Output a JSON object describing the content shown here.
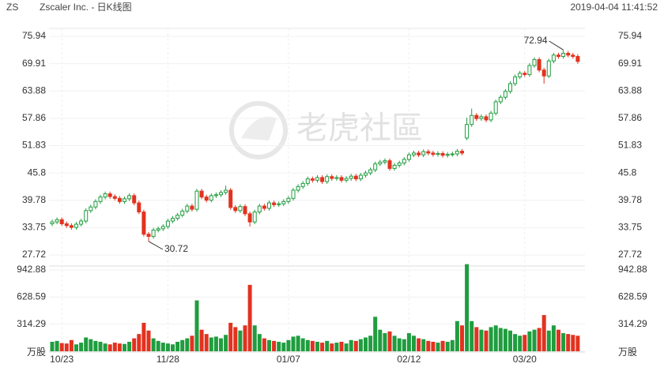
{
  "header": {
    "symbol": "ZS",
    "name": "Zscaler Inc. - 日K线图",
    "time": "2019-04-04 11:41:52"
  },
  "watermark": "老虎社區",
  "chart_data": {
    "type": "candlestick",
    "up_color": "#1f9d3f",
    "down_color": "#e2321f",
    "grid": true,
    "categories": [
      null,
      null,
      "10/23",
      null,
      null,
      null,
      null,
      null,
      null,
      null,
      null,
      null,
      null,
      null,
      null,
      null,
      null,
      null,
      null,
      null,
      null,
      null,
      null,
      null,
      "11/28",
      null,
      null,
      null,
      null,
      null,
      null,
      null,
      null,
      null,
      null,
      null,
      null,
      null,
      null,
      null,
      null,
      null,
      null,
      null,
      null,
      null,
      null,
      null,
      null,
      "01/07",
      null,
      null,
      null,
      null,
      null,
      null,
      null,
      null,
      null,
      null,
      null,
      null,
      null,
      null,
      null,
      null,
      null,
      null,
      null,
      null,
      null,
      null,
      null,
      null,
      "02/12",
      null,
      null,
      null,
      null,
      null,
      null,
      null,
      null,
      null,
      null,
      null,
      null,
      null,
      null,
      null,
      null,
      null,
      null,
      null,
      null,
      null,
      null,
      null,
      "03/20",
      null,
      null,
      null,
      null,
      null,
      null,
      null,
      null,
      null,
      null,
      null
    ],
    "open": [
      34.6,
      35.0,
      35.5,
      34.6,
      34.2,
      33.8,
      34.5,
      35.2,
      37.5,
      38.3,
      39.5,
      40.5,
      41.2,
      40.6,
      40.2,
      39.5,
      40.1,
      40.8,
      39.2,
      37.2,
      32.3,
      31.8,
      33.2,
      33.5,
      34.0,
      35.2,
      35.8,
      36.5,
      37.4,
      38.5,
      37.8,
      41.8,
      40.5,
      39.8,
      40.8,
      41.0,
      41.5,
      42.0,
      38.2,
      37.5,
      38.4,
      36.8,
      35.0,
      37.2,
      38.5,
      38.0,
      39.2,
      38.8,
      39.0,
      39.5,
      40.2,
      42.0,
      42.8,
      43.5,
      44.5,
      44.2,
      44.8,
      43.9,
      45.0,
      44.6,
      44.8,
      44.2,
      44.6,
      45.1,
      44.5,
      45.3,
      45.8,
      46.5,
      47.8,
      48.2,
      48.5,
      46.8,
      47.5,
      48.0,
      48.8,
      49.8,
      50.2,
      49.8,
      50.5,
      50.2,
      49.9,
      50.1,
      49.7,
      49.9,
      50.0,
      50.6,
      53.5,
      56.5,
      58.5,
      57.8,
      58.2,
      57.5,
      59.0,
      61.5,
      62.5,
      63.8,
      65.5,
      67.0,
      67.8,
      67.5,
      69.5,
      70.8,
      68.5,
      67.2,
      70.5,
      71.8,
      71.5,
      72.2,
      71.8,
      71.5
    ],
    "high": [
      35.5,
      36.0,
      36.0,
      35.1,
      34.7,
      35.0,
      35.7,
      38.0,
      38.8,
      40.0,
      41.0,
      41.7,
      41.7,
      41.1,
      40.7,
      40.6,
      41.3,
      41.3,
      39.7,
      37.7,
      32.8,
      33.7,
      34.0,
      34.5,
      35.7,
      36.3,
      37.0,
      37.9,
      39.0,
      39.0,
      42.3,
      42.3,
      41.0,
      41.3,
      41.5,
      42.0,
      43.0,
      42.5,
      38.7,
      38.9,
      38.9,
      37.3,
      37.7,
      39.0,
      39.0,
      39.7,
      39.7,
      39.5,
      40.0,
      40.7,
      42.5,
      43.3,
      44.0,
      45.0,
      45.0,
      45.3,
      45.3,
      45.5,
      45.5,
      45.3,
      45.3,
      45.1,
      45.6,
      45.6,
      45.8,
      46.3,
      47.0,
      48.3,
      48.7,
      49.0,
      49.0,
      48.0,
      48.5,
      49.3,
      50.3,
      50.7,
      50.7,
      51.0,
      51.0,
      50.7,
      50.6,
      50.6,
      50.4,
      50.5,
      51.1,
      51.1,
      58.0,
      60.0,
      59.0,
      58.7,
      58.7,
      59.5,
      62.0,
      63.0,
      64.3,
      66.0,
      67.5,
      68.3,
      68.3,
      70.0,
      71.3,
      71.3,
      69.0,
      71.0,
      72.3,
      72.3,
      72.94,
      72.7,
      72.3,
      72.0
    ],
    "low": [
      34.1,
      34.5,
      34.1,
      33.7,
      33.3,
      33.3,
      34.0,
      34.7,
      37.0,
      37.8,
      39.0,
      40.0,
      40.1,
      39.7,
      39.0,
      39.0,
      39.6,
      38.7,
      36.7,
      31.8,
      30.72,
      31.3,
      32.7,
      33.0,
      33.5,
      34.7,
      35.3,
      36.0,
      36.9,
      37.3,
      37.3,
      40.0,
      39.3,
      39.3,
      40.3,
      40.5,
      41.0,
      37.7,
      37.0,
      37.0,
      36.3,
      34.0,
      34.5,
      36.7,
      37.5,
      37.5,
      38.3,
      38.3,
      38.5,
      39.0,
      39.7,
      41.5,
      42.3,
      43.0,
      43.7,
      43.7,
      43.4,
      43.4,
      44.1,
      44.1,
      43.7,
      43.7,
      44.1,
      44.0,
      44.0,
      44.8,
      45.3,
      46.0,
      47.3,
      47.7,
      46.3,
      46.3,
      47.0,
      47.5,
      48.3,
      49.3,
      49.3,
      49.3,
      49.7,
      49.4,
      49.4,
      49.2,
      49.2,
      49.4,
      49.5,
      49.7,
      53.0,
      56.0,
      57.3,
      57.3,
      57.0,
      57.0,
      58.5,
      61.0,
      62.0,
      63.3,
      65.0,
      66.5,
      67.0,
      67.0,
      69.0,
      68.0,
      65.5,
      66.7,
      70.0,
      71.0,
      71.0,
      71.3,
      71.0,
      69.9
    ],
    "close": [
      35.0,
      35.5,
      34.6,
      34.2,
      33.8,
      34.5,
      35.2,
      37.5,
      38.3,
      39.5,
      40.5,
      41.2,
      40.6,
      40.2,
      39.5,
      40.1,
      40.8,
      39.2,
      37.2,
      32.3,
      31.8,
      33.2,
      33.5,
      34.0,
      35.2,
      35.8,
      36.5,
      37.4,
      38.5,
      37.8,
      41.8,
      40.5,
      39.8,
      40.8,
      41.0,
      41.5,
      42.0,
      38.2,
      37.5,
      38.4,
      36.8,
      35.0,
      37.2,
      38.5,
      38.0,
      39.2,
      38.8,
      39.0,
      39.5,
      40.2,
      42.0,
      42.8,
      43.5,
      44.5,
      44.2,
      44.8,
      43.9,
      45.0,
      44.6,
      44.8,
      44.2,
      44.6,
      45.1,
      44.5,
      45.3,
      45.8,
      46.5,
      47.8,
      48.2,
      48.5,
      46.8,
      47.5,
      48.0,
      48.8,
      49.8,
      50.2,
      49.8,
      50.5,
      50.2,
      49.9,
      50.1,
      49.7,
      49.9,
      50.0,
      50.6,
      50.2,
      56.5,
      58.5,
      57.8,
      58.2,
      57.5,
      59.0,
      61.5,
      62.5,
      63.8,
      65.5,
      67.0,
      67.8,
      67.5,
      69.5,
      70.8,
      68.5,
      67.2,
      70.5,
      71.8,
      71.5,
      72.2,
      71.8,
      71.5,
      70.4
    ],
    "volume": [
      110,
      120,
      95,
      90,
      130,
      80,
      100,
      160,
      140,
      120,
      110,
      90,
      80,
      100,
      90,
      85,
      110,
      150,
      200,
      330,
      240,
      150,
      120,
      100,
      90,
      80,
      110,
      130,
      150,
      180,
      590,
      250,
      200,
      160,
      170,
      150,
      190,
      330,
      280,
      240,
      300,
      770,
      300,
      200,
      150,
      130,
      120,
      110,
      100,
      130,
      170,
      180,
      150,
      130,
      120,
      110,
      100,
      120,
      90,
      100,
      110,
      90,
      130,
      120,
      140,
      160,
      180,
      400,
      250,
      210,
      230,
      180,
      150,
      140,
      210,
      180,
      150,
      140,
      120,
      110,
      100,
      120,
      110,
      130,
      350,
      300,
      1010,
      350,
      280,
      250,
      240,
      280,
      300,
      270,
      260,
      240,
      200,
      180,
      190,
      230,
      250,
      270,
      420,
      240,
      300,
      250,
      210,
      200,
      190,
      180
    ],
    "ylim": [
      27.72,
      75.94
    ],
    "yticks": [
      27.72,
      33.75,
      39.78,
      45.8,
      51.83,
      57.86,
      63.88,
      69.91,
      75.94
    ],
    "vol_ylim": [
      0,
      942.88
    ],
    "vol_yticks": [
      {
        "value": 0,
        "label": "万股"
      },
      314.29,
      628.59,
      942.88
    ]
  }
}
